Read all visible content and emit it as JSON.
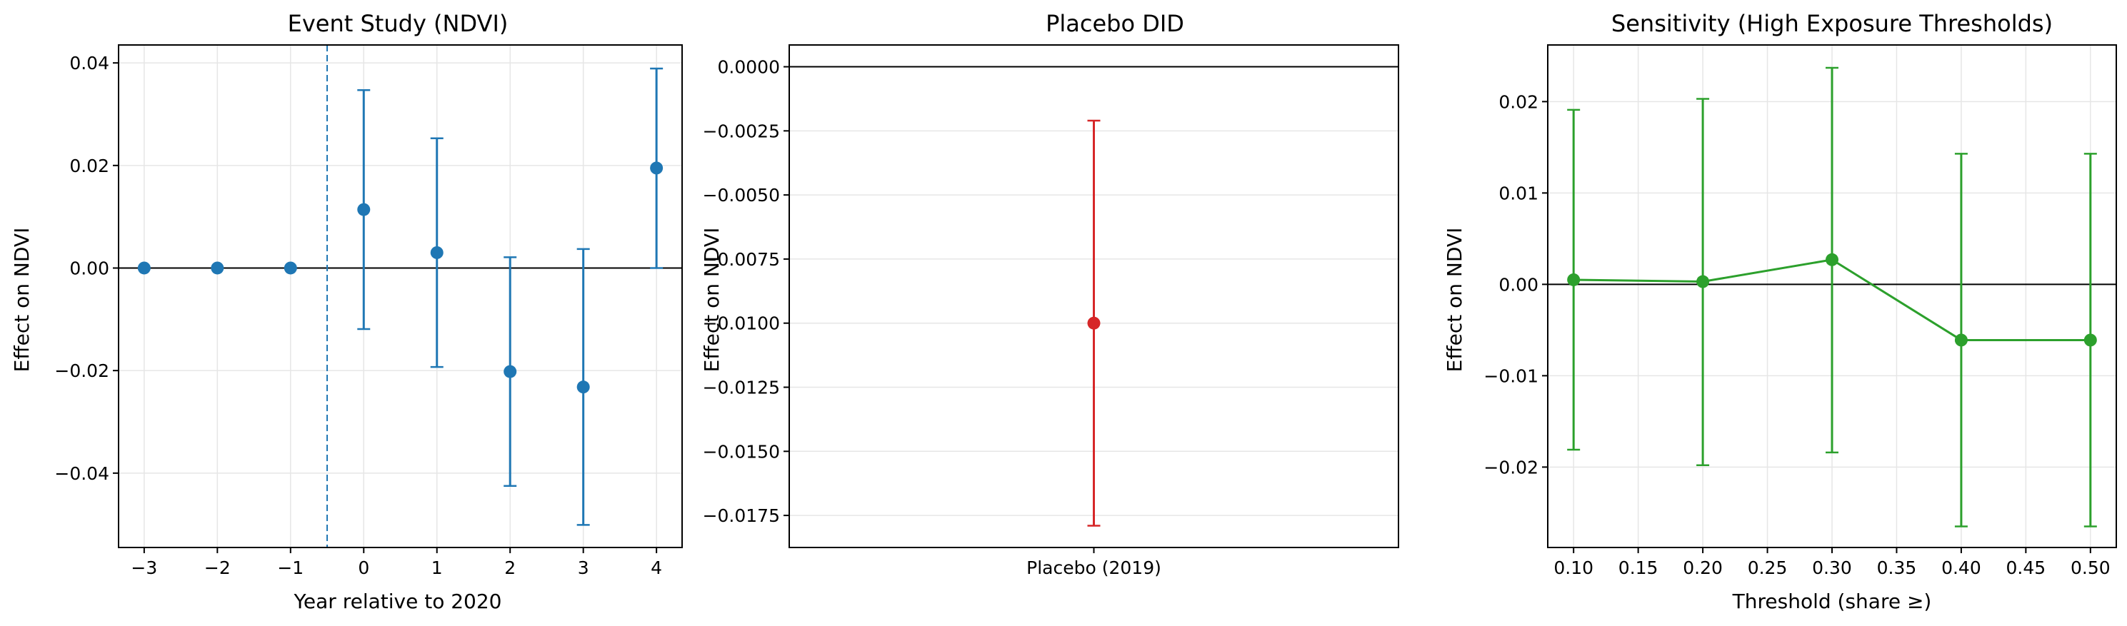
{
  "chart_data": [
    {
      "type": "scatter",
      "title": "Event Study (NDVI)",
      "xlabel": "Year relative to 2020",
      "ylabel": "Effect on NDVI",
      "xlim": [
        -3.35,
        4.35
      ],
      "ylim": [
        -0.0545,
        0.0435
      ],
      "xticks": [
        -3,
        -2,
        -1,
        0,
        1,
        2,
        3,
        4
      ],
      "xtick_labels": [
        "−3",
        "−2",
        "−1",
        "0",
        "1",
        "2",
        "3",
        "4"
      ],
      "yticks": [
        -0.04,
        -0.02,
        0.0,
        0.02,
        0.04
      ],
      "ytick_labels": [
        "−0.04",
        "−0.02",
        "0.00",
        "0.02",
        "0.04"
      ],
      "grid": true,
      "color": "#1f77b4",
      "reference_line_y": 0,
      "event_line_x": -0.5,
      "series": [
        {
          "x": [
            -3,
            -2,
            -1,
            0,
            1,
            2,
            3,
            4
          ],
          "y": [
            0.0,
            0.0,
            0.0,
            0.0114,
            0.003,
            -0.0202,
            -0.0232,
            0.0195
          ],
          "ci_low": [
            0.0,
            0.0,
            0.0,
            -0.0119,
            -0.0193,
            -0.0425,
            -0.0501,
            0.0
          ],
          "ci_high": [
            0.0,
            0.0,
            0.0,
            0.0347,
            0.0253,
            0.0021,
            0.0037,
            0.0389
          ]
        }
      ]
    },
    {
      "type": "scatter",
      "title": "Placebo DID",
      "xlabel": "",
      "ylabel": "Effect on NDVI",
      "categories": [
        "Placebo (2019)"
      ],
      "ylim": [
        -0.01875,
        0.00085
      ],
      "yticks": [
        0.0,
        -0.0025,
        -0.005,
        -0.0075,
        -0.01,
        -0.0125,
        -0.015,
        -0.0175
      ],
      "ytick_labels": [
        "0.0000",
        "−0.0025",
        "−0.0050",
        "−0.0075",
        "−0.0100",
        "−0.0125",
        "−0.0150",
        "−0.0175"
      ],
      "grid": true,
      "color": "#d62728",
      "reference_line_y": 0,
      "series": [
        {
          "values": [
            -0.01
          ],
          "ci_low": [
            -0.0179
          ],
          "ci_high": [
            -0.0021
          ]
        }
      ]
    },
    {
      "type": "line",
      "title": "Sensitivity (High Exposure Thresholds)",
      "xlabel": "Threshold (share ≥)",
      "ylabel": "Effect on NDVI",
      "xlim": [
        0.08,
        0.52
      ],
      "ylim": [
        -0.0288,
        0.0262
      ],
      "xticks": [
        0.1,
        0.15,
        0.2,
        0.25,
        0.3,
        0.35,
        0.4,
        0.45,
        0.5
      ],
      "xtick_labels": [
        "0.10",
        "0.15",
        "0.20",
        "0.25",
        "0.30",
        "0.35",
        "0.40",
        "0.45",
        "0.50"
      ],
      "yticks": [
        0.02,
        0.01,
        0.0,
        -0.01,
        -0.02
      ],
      "ytick_labels": [
        "0.02",
        "0.01",
        "0.00",
        "−0.01",
        "−0.02"
      ],
      "grid": true,
      "color": "#2ca02c",
      "reference_line_y": 0,
      "series": [
        {
          "x": [
            0.1,
            0.2,
            0.3,
            0.4,
            0.5
          ],
          "y": [
            0.0005,
            0.0003,
            0.0027,
            -0.0061,
            -0.0061
          ],
          "ci_low": [
            -0.0181,
            -0.0198,
            -0.0184,
            -0.0265,
            -0.0265
          ],
          "ci_high": [
            0.0191,
            0.0203,
            0.0237,
            0.0143,
            0.0143
          ]
        }
      ]
    }
  ]
}
